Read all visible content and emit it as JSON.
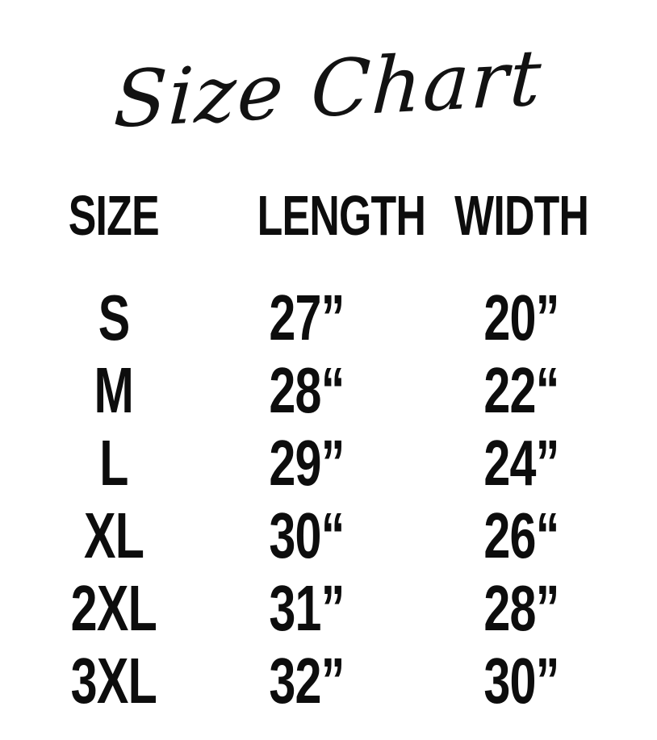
{
  "page": {
    "background_color": "#ffffff",
    "text_color": "#0d0d0d"
  },
  "title": {
    "text": "Size Chart"
  },
  "table": {
    "headers": [
      {
        "label": "SIZE"
      },
      {
        "label": "LENGTH"
      },
      {
        "label": "WIDTH"
      }
    ],
    "rows": [
      {
        "size": "S",
        "length": "27”",
        "width": "20”"
      },
      {
        "size": "M",
        "length": "28“",
        "width": "22“"
      },
      {
        "size": "L",
        "length": "29”",
        "width": "24”"
      },
      {
        "size": "XL",
        "length": "30“",
        "width": "26“"
      },
      {
        "size": "2XL",
        "length": "31”",
        "width": "28”"
      },
      {
        "size": "3XL",
        "length": "32”",
        "width": "30”"
      }
    ]
  },
  "chart_data": {
    "type": "table",
    "title": "Size Chart",
    "columns": [
      "SIZE",
      "LENGTH",
      "WIDTH"
    ],
    "rows": [
      [
        "S",
        "27”",
        "20”"
      ],
      [
        "M",
        "28“",
        "22“"
      ],
      [
        "L",
        "29”",
        "24”"
      ],
      [
        "XL",
        "30“",
        "26“"
      ],
      [
        "2XL",
        "31”",
        "28”"
      ],
      [
        "3XL",
        "32”",
        "30”"
      ]
    ],
    "units": "inches",
    "length_values_in": [
      27,
      28,
      29,
      30,
      31,
      32
    ],
    "width_values_in": [
      20,
      22,
      24,
      26,
      28,
      30
    ]
  }
}
